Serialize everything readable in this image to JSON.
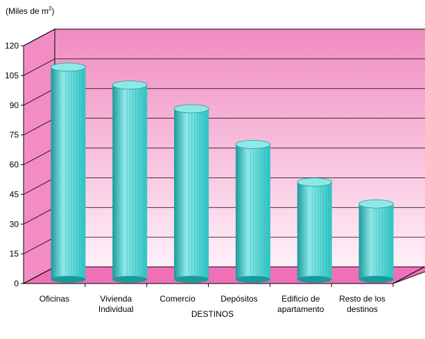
{
  "chart_data": {
    "type": "bar",
    "ylabel_prefix": "(Miles de m",
    "ylabel_sup": "2",
    "ylabel_suffix": ")",
    "xlabel": "DESTINOS",
    "ylim": [
      0,
      120
    ],
    "yticks": [
      0,
      15,
      30,
      45,
      60,
      75,
      90,
      105,
      120
    ],
    "categories": [
      [
        "Oficinas"
      ],
      [
        "Vivienda",
        "Individual"
      ],
      [
        "Comercio"
      ],
      [
        "Depósitos"
      ],
      [
        "Edificio de",
        "apartamento"
      ],
      [
        "Resto de los",
        "destinos"
      ]
    ],
    "values": [
      105,
      96,
      84,
      66,
      47,
      36
    ],
    "grid": true,
    "colors": {
      "bar": "#2ec4c4",
      "bar_dark": "#1a9a9a",
      "bar_light": "#8ee8e8",
      "wall_top": "#f08cc0",
      "wall_bottom": "#fff0f8",
      "floor": "#f070b8",
      "side_wall": "#f48cc4"
    }
  }
}
